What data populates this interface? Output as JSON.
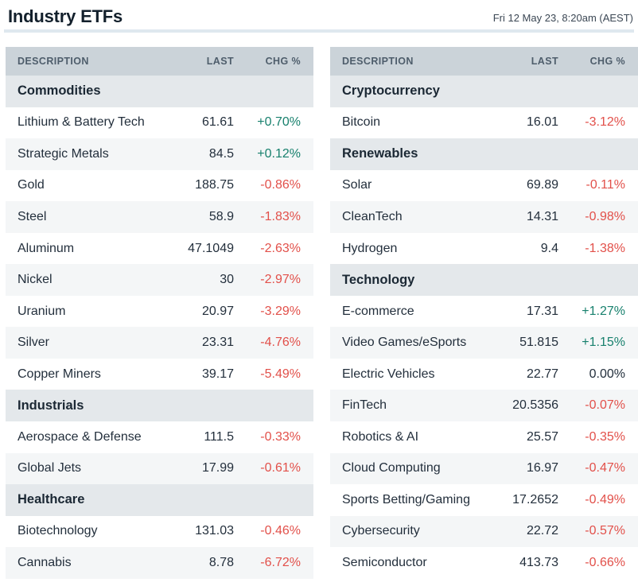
{
  "page": {
    "title": "Industry ETFs",
    "timestamp": "Fri 12 May 23, 8:20am (AEST)"
  },
  "colors": {
    "positive": "#17806d",
    "negative": "#e2504a",
    "neutral": "#232f3c",
    "header_bg": "#cbd3d9",
    "category_bg": "#e4e8eb",
    "stripe_bg": "#f4f6f7"
  },
  "columns": {
    "description": "DESCRIPTION",
    "last": "LAST",
    "chg": "CHG %"
  },
  "tables": [
    {
      "id": "left",
      "sections": [
        {
          "name": "Commodities",
          "rows": [
            {
              "description": "Lithium & Battery Tech",
              "last": "61.61",
              "chg": "+0.70%"
            },
            {
              "description": "Strategic Metals",
              "last": "84.5",
              "chg": "+0.12%"
            },
            {
              "description": "Gold",
              "last": "188.75",
              "chg": "-0.86%"
            },
            {
              "description": "Steel",
              "last": "58.9",
              "chg": "-1.83%"
            },
            {
              "description": "Aluminum",
              "last": "47.1049",
              "chg": "-2.63%"
            },
            {
              "description": "Nickel",
              "last": "30",
              "chg": "-2.97%"
            },
            {
              "description": "Uranium",
              "last": "20.97",
              "chg": "-3.29%"
            },
            {
              "description": "Silver",
              "last": "23.31",
              "chg": "-4.76%"
            },
            {
              "description": "Copper Miners",
              "last": "39.17",
              "chg": "-5.49%"
            }
          ]
        },
        {
          "name": "Industrials",
          "rows": [
            {
              "description": "Aerospace & Defense",
              "last": "111.5",
              "chg": "-0.33%"
            },
            {
              "description": "Global Jets",
              "last": "17.99",
              "chg": "-0.61%"
            }
          ]
        },
        {
          "name": "Healthcare",
          "rows": [
            {
              "description": "Biotechnology",
              "last": "131.03",
              "chg": "-0.46%"
            },
            {
              "description": "Cannabis",
              "last": "8.78",
              "chg": "-6.72%"
            }
          ]
        }
      ]
    },
    {
      "id": "right",
      "sections": [
        {
          "name": "Cryptocurrency",
          "rows": [
            {
              "description": "Bitcoin",
              "last": "16.01",
              "chg": "-3.12%"
            }
          ]
        },
        {
          "name": "Renewables",
          "rows": [
            {
              "description": "Solar",
              "last": "69.89",
              "chg": "-0.11%"
            },
            {
              "description": "CleanTech",
              "last": "14.31",
              "chg": "-0.98%"
            },
            {
              "description": "Hydrogen",
              "last": "9.4",
              "chg": "-1.38%"
            }
          ]
        },
        {
          "name": "Technology",
          "rows": [
            {
              "description": "E-commerce",
              "last": "17.31",
              "chg": "+1.27%"
            },
            {
              "description": "Video Games/eSports",
              "last": "51.815",
              "chg": "+1.15%"
            },
            {
              "description": "Electric Vehicles",
              "last": "22.77",
              "chg": "0.00%"
            },
            {
              "description": "FinTech",
              "last": "20.5356",
              "chg": "-0.07%"
            },
            {
              "description": "Robotics & AI",
              "last": "25.57",
              "chg": "-0.35%"
            },
            {
              "description": "Cloud Computing",
              "last": "16.97",
              "chg": "-0.47%"
            },
            {
              "description": "Sports Betting/Gaming",
              "last": "17.2652",
              "chg": "-0.49%"
            },
            {
              "description": "Cybersecurity",
              "last": "22.72",
              "chg": "-0.57%"
            },
            {
              "description": "Semiconductor",
              "last": "413.73",
              "chg": "-0.66%"
            }
          ]
        }
      ]
    }
  ]
}
